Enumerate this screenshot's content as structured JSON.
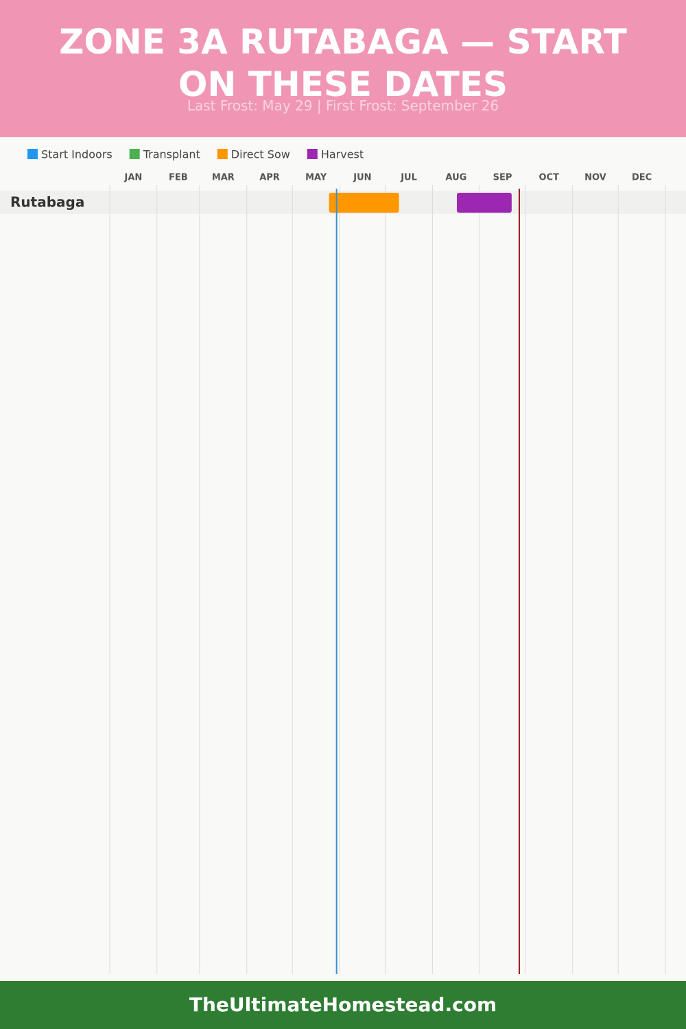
{
  "chart_data": {
    "type": "gantt",
    "title": "ZONE 3A RUTABAGA — START ON THESE DATES",
    "subtitle": "Last Frost: May 29 | First Frost: September 26",
    "footer": "TheUltimateHomestead.com",
    "categories": [
      "Rutabaga"
    ],
    "series": [
      {
        "name": "Start Indoors",
        "color": "#2196f3",
        "values": [
          null
        ]
      },
      {
        "name": "Transplant",
        "color": "#4caf50",
        "values": [
          null
        ]
      },
      {
        "name": "Direct Sow",
        "color": "#ff9800",
        "values": [
          [
            144,
            190
          ]
        ]
      },
      {
        "name": "Harvest",
        "color": "#9c27b0",
        "values": [
          [
            228,
            264
          ]
        ]
      }
    ],
    "frost_lines": [
      {
        "value": 149,
        "color": "#3a8fd0"
      },
      {
        "value": 269,
        "color": "#a01818"
      }
    ],
    "xlim": [
      0,
      365
    ],
    "xticks": [
      {
        "value": 0,
        "label": "JAN"
      },
      {
        "value": 31,
        "label": "FEB"
      },
      {
        "value": 59,
        "label": "MAR"
      },
      {
        "value": 90,
        "label": "APR"
      },
      {
        "value": 120,
        "label": "MAY"
      },
      {
        "value": 151,
        "label": "JUN"
      },
      {
        "value": 181,
        "label": "JUL"
      },
      {
        "value": 212,
        "label": "AUG"
      },
      {
        "value": 243,
        "label": "SEP"
      },
      {
        "value": 273,
        "label": "OCT"
      },
      {
        "value": 304,
        "label": "NOV"
      },
      {
        "value": 334,
        "label": "DEC"
      }
    ],
    "grid": true
  }
}
